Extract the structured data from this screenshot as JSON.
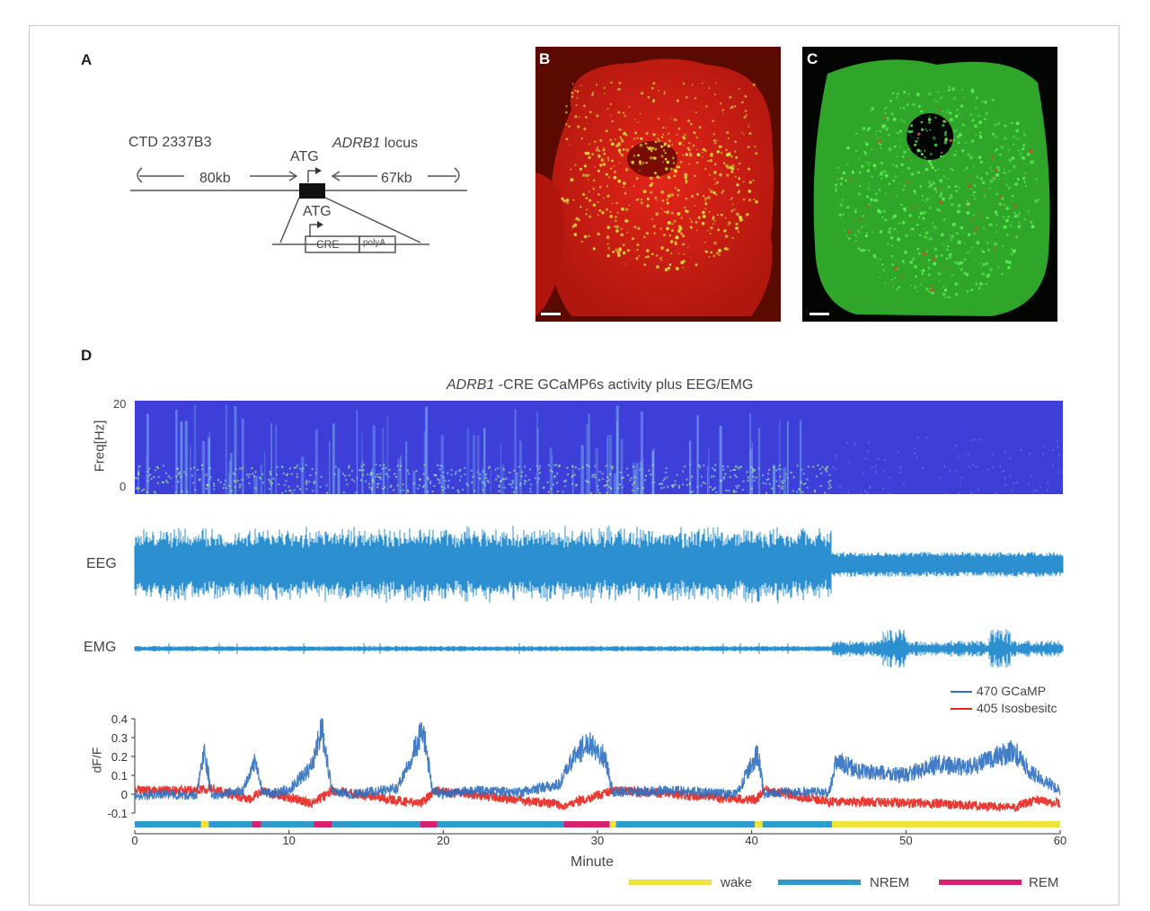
{
  "panels": {
    "a": "A",
    "b": "B",
    "c": "C",
    "d": "D"
  },
  "construct": {
    "bac_name": "CTD 2337B3",
    "locus_gene": "ADRB1",
    "locus_suffix": " locus",
    "atg_top": "ATG",
    "atg_bottom": "ATG",
    "left_length": "80kb",
    "right_length": "67kb",
    "cre_label": "CRE",
    "polya_label": "polyA"
  },
  "figure_d": {
    "title_gene": "ADRB1",
    "title_rest": " -CRE GCaMP6s activity plus EEG/EMG",
    "spectrogram_ylabel": "Freq[Hz]",
    "spectrogram_yticks": [
      "20",
      "0"
    ],
    "eeg_label": "EEG",
    "emg_label": "EMG",
    "dff_ylabel": "dF/F"
  },
  "colors": {
    "gcamp": "#2e6fc0",
    "isosbestic": "#e8231c",
    "wake": "#f0e23a",
    "nrem": "#2f9ad0",
    "rem": "#d6226e",
    "spectrogram_bg": "#3d3fd8",
    "eeg": "#2b8fd0"
  },
  "chart_data": {
    "type": "line",
    "xlabel": "Minute",
    "ylabel": "dF/F",
    "xlim": [
      0,
      60
    ],
    "ylim": [
      -0.1,
      0.4
    ],
    "x_ticks": [
      "0",
      "10",
      "20",
      "30",
      "40",
      "50",
      "60"
    ],
    "y_ticks": [
      "0.4",
      "0.3",
      "0.2",
      "0.1",
      "0",
      "-0.1"
    ],
    "legend_placement": "top-right",
    "series": [
      {
        "name": "470 GCaMP",
        "x": [
          0,
          2,
          4,
          4.5,
          5,
          7,
          7.8,
          8.3,
          10,
          11.5,
          12.1,
          12.8,
          14,
          17,
          18.7,
          19.3,
          20,
          22,
          25,
          27.5,
          28.5,
          29.5,
          30.5,
          31,
          35,
          39,
          40.4,
          40.8,
          42,
          45,
          45.5,
          47,
          50,
          52,
          54,
          56,
          57,
          58,
          60
        ],
        "y": [
          -0.01,
          0,
          -0.01,
          0.24,
          -0.01,
          0.02,
          0.17,
          0,
          0.02,
          0.15,
          0.36,
          0.02,
          0,
          0.03,
          0.34,
          0.02,
          0,
          0.02,
          0.01,
          0.05,
          0.2,
          0.28,
          0.19,
          0.01,
          0.02,
          0,
          0.22,
          0,
          0.01,
          0.01,
          0.18,
          0.12,
          0.1,
          0.16,
          0.14,
          0.2,
          0.23,
          0.12,
          0.02
        ]
      },
      {
        "name": "405 Isosbesitc",
        "x": [
          0,
          4,
          5,
          7.5,
          8.2,
          11.5,
          12.8,
          18.5,
          19.5,
          28,
          31,
          40.3,
          40.8,
          45,
          47,
          52,
          57,
          58.5,
          60
        ],
        "y": [
          0.02,
          0.02,
          0.03,
          -0.03,
          0.02,
          -0.05,
          0.02,
          -0.05,
          0.02,
          -0.06,
          0.02,
          -0.03,
          0.02,
          -0.04,
          -0.04,
          -0.05,
          -0.07,
          -0.03,
          -0.05
        ]
      }
    ],
    "sleep_states": {
      "legend": [
        "wake",
        "NREM",
        "REM"
      ],
      "segments": [
        {
          "state": "NREM",
          "start": 0,
          "end": 4.3
        },
        {
          "state": "wake",
          "start": 4.3,
          "end": 4.8
        },
        {
          "state": "NREM",
          "start": 4.8,
          "end": 7.6
        },
        {
          "state": "REM",
          "start": 7.6,
          "end": 8.2
        },
        {
          "state": "NREM",
          "start": 8.2,
          "end": 11.6
        },
        {
          "state": "REM",
          "start": 11.6,
          "end": 12.8
        },
        {
          "state": "NREM",
          "start": 12.8,
          "end": 18.5
        },
        {
          "state": "REM",
          "start": 18.5,
          "end": 19.6
        },
        {
          "state": "NREM",
          "start": 19.6,
          "end": 27.8
        },
        {
          "state": "REM",
          "start": 27.8,
          "end": 30.8
        },
        {
          "state": "wake",
          "start": 30.8,
          "end": 31.2
        },
        {
          "state": "NREM",
          "start": 31.2,
          "end": 40.2
        },
        {
          "state": "wake",
          "start": 40.2,
          "end": 40.7
        },
        {
          "state": "NREM",
          "start": 40.7,
          "end": 45.2
        },
        {
          "state": "wake",
          "start": 45.2,
          "end": 60
        }
      ]
    }
  }
}
